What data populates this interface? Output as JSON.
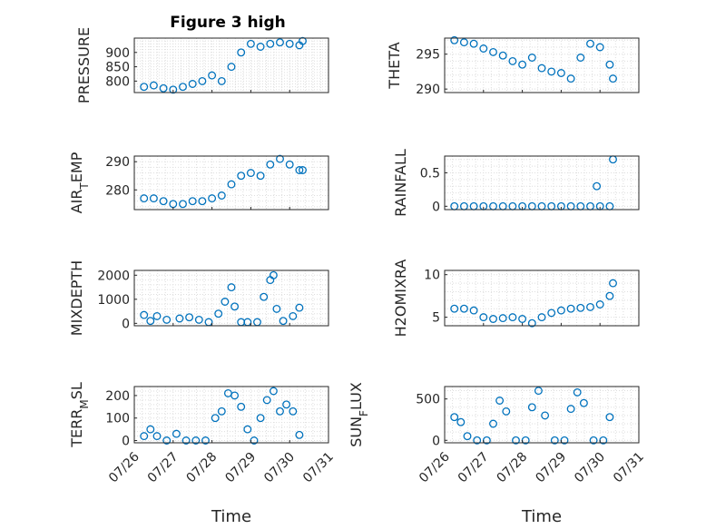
{
  "figure_title": "Figure 3 high",
  "chart_data": [
    {
      "type": "scatter",
      "ylabel": "PRESSURE",
      "xlabel": "",
      "title": "Figure 3 high",
      "xlim": [
        "07/26",
        "07/31"
      ],
      "ylim": [
        760,
        950
      ],
      "xticks": [
        "07/26",
        "07/27",
        "07/28",
        "07/29",
        "07/30",
        "07/31"
      ],
      "yticks": [
        800,
        850,
        900
      ],
      "ytick_labels": [
        "800",
        "850",
        "900"
      ],
      "x": [
        "07/26 06:00",
        "07/26 12:00",
        "07/26 18:00",
        "07/27 00:00",
        "07/27 06:00",
        "07/27 12:00",
        "07/27 18:00",
        "07/28 00:00",
        "07/28 06:00",
        "07/28 12:00",
        "07/28 18:00",
        "07/29 00:00",
        "07/29 06:00",
        "07/29 12:00",
        "07/29 18:00",
        "07/30 00:00",
        "07/30 06:00",
        "07/30 08:00"
      ],
      "y": [
        780,
        785,
        775,
        770,
        780,
        790,
        800,
        820,
        800,
        850,
        900,
        930,
        920,
        930,
        935,
        930,
        925,
        940
      ]
    },
    {
      "type": "scatter",
      "ylabel": "AIR_T_EMP",
      "xlabel": "",
      "xlim": [
        "07/26",
        "07/31"
      ],
      "ylim": [
        273,
        292
      ],
      "xticks": [
        "07/26",
        "07/27",
        "07/28",
        "07/29",
        "07/30",
        "07/31"
      ],
      "yticks": [
        280,
        290
      ],
      "ytick_labels": [
        "280",
        "290"
      ],
      "x": [
        "07/26 06:00",
        "07/26 12:00",
        "07/26 18:00",
        "07/27 00:00",
        "07/27 06:00",
        "07/27 12:00",
        "07/27 18:00",
        "07/28 00:00",
        "07/28 06:00",
        "07/28 12:00",
        "07/28 18:00",
        "07/29 00:00",
        "07/29 06:00",
        "07/29 12:00",
        "07/29 18:00",
        "07/30 00:00",
        "07/30 06:00",
        "07/30 08:00"
      ],
      "y": [
        277,
        277,
        276,
        275,
        275,
        276,
        276,
        277,
        278,
        282,
        285,
        286,
        285,
        289,
        291,
        289,
        287,
        287
      ]
    },
    {
      "type": "scatter",
      "ylabel": "MIXDEPTH",
      "xlabel": "",
      "xlim": [
        "07/26",
        "07/31"
      ],
      "ylim": [
        -100,
        2200
      ],
      "xticks": [
        "07/26",
        "07/27",
        "07/28",
        "07/29",
        "07/30",
        "07/31"
      ],
      "yticks": [
        0,
        1000,
        2000
      ],
      "ytick_labels": [
        "0",
        "1000",
        "2000"
      ],
      "x": [
        "07/26 06:00",
        "07/26 10:00",
        "07/26 14:00",
        "07/26 20:00",
        "07/27 04:00",
        "07/27 10:00",
        "07/27 16:00",
        "07/27 22:00",
        "07/28 04:00",
        "07/28 08:00",
        "07/28 12:00",
        "07/28 14:00",
        "07/28 18:00",
        "07/28 22:00",
        "07/29 04:00",
        "07/29 08:00",
        "07/29 12:00",
        "07/29 14:00",
        "07/29 16:00",
        "07/29 20:00",
        "07/30 02:00",
        "07/30 06:00"
      ],
      "y": [
        350,
        100,
        300,
        150,
        200,
        250,
        150,
        50,
        400,
        900,
        1500,
        700,
        50,
        50,
        50,
        1100,
        1800,
        2000,
        600,
        100,
        300,
        650
      ]
    },
    {
      "type": "scatter",
      "ylabel": "TERR_M_SL",
      "xlabel": "Time",
      "xlim": [
        "07/26",
        "07/31"
      ],
      "ylim": [
        -10,
        240
      ],
      "xticks": [
        "07/26",
        "07/27",
        "07/28",
        "07/29",
        "07/30",
        "07/31"
      ],
      "yticks": [
        0,
        100,
        200
      ],
      "ytick_labels": [
        "0",
        "100",
        "200"
      ],
      "x": [
        "07/26 06:00",
        "07/26 10:00",
        "07/26 14:00",
        "07/26 20:00",
        "07/27 02:00",
        "07/27 08:00",
        "07/27 14:00",
        "07/27 20:00",
        "07/28 02:00",
        "07/28 06:00",
        "07/28 10:00",
        "07/28 14:00",
        "07/28 18:00",
        "07/28 22:00",
        "07/29 02:00",
        "07/29 06:00",
        "07/29 10:00",
        "07/29 14:00",
        "07/29 18:00",
        "07/29 22:00",
        "07/30 02:00",
        "07/30 06:00"
      ],
      "y": [
        20,
        50,
        20,
        0,
        30,
        0,
        0,
        0,
        100,
        130,
        210,
        200,
        150,
        50,
        0,
        100,
        180,
        220,
        130,
        160,
        130,
        25
      ]
    },
    {
      "type": "scatter",
      "ylabel": "THETA",
      "xlabel": "",
      "xlim": [
        "07/26",
        "07/31"
      ],
      "ylim": [
        289.5,
        297.3
      ],
      "xticks": [
        "07/26",
        "07/27",
        "07/28",
        "07/29",
        "07/30",
        "07/31"
      ],
      "yticks": [
        290,
        295
      ],
      "ytick_labels": [
        "290",
        "295"
      ],
      "x": [
        "07/26 06:00",
        "07/26 12:00",
        "07/26 18:00",
        "07/27 00:00",
        "07/27 06:00",
        "07/27 12:00",
        "07/27 18:00",
        "07/28 00:00",
        "07/28 06:00",
        "07/28 12:00",
        "07/28 18:00",
        "07/29 00:00",
        "07/29 06:00",
        "07/29 12:00",
        "07/29 18:00",
        "07/30 00:00",
        "07/30 06:00",
        "07/30 08:00"
      ],
      "y": [
        297,
        296.7,
        296.5,
        295.8,
        295.3,
        294.8,
        294.0,
        293.5,
        294.5,
        293.0,
        292.5,
        292.3,
        291.5,
        294.5,
        296.5,
        296.0,
        293.5,
        291.5
      ]
    },
    {
      "type": "scatter",
      "ylabel": "RAINFALL",
      "xlabel": "",
      "xlim": [
        "07/26",
        "07/31"
      ],
      "ylim": [
        -0.05,
        0.75
      ],
      "xticks": [
        "07/26",
        "07/27",
        "07/28",
        "07/29",
        "07/30",
        "07/31"
      ],
      "yticks": [
        0,
        0.5
      ],
      "ytick_labels": [
        "0",
        "0.5"
      ],
      "x": [
        "07/26 06:00",
        "07/26 12:00",
        "07/26 18:00",
        "07/27 00:00",
        "07/27 06:00",
        "07/27 12:00",
        "07/27 18:00",
        "07/28 00:00",
        "07/28 06:00",
        "07/28 12:00",
        "07/28 18:00",
        "07/29 00:00",
        "07/29 06:00",
        "07/29 12:00",
        "07/29 18:00",
        "07/29 22:00",
        "07/30 00:00",
        "07/30 06:00",
        "07/30 08:00"
      ],
      "y": [
        0,
        0,
        0,
        0,
        0,
        0,
        0,
        0,
        0,
        0,
        0,
        0,
        0,
        0,
        0,
        0.3,
        0,
        0,
        0.7
      ]
    },
    {
      "type": "scatter",
      "ylabel": "H2OMIXRA",
      "xlabel": "",
      "xlim": [
        "07/26",
        "07/31"
      ],
      "ylim": [
        4,
        10.5
      ],
      "xticks": [
        "07/26",
        "07/27",
        "07/28",
        "07/29",
        "07/30",
        "07/31"
      ],
      "yticks": [
        5,
        10
      ],
      "ytick_labels": [
        "5",
        "10"
      ],
      "x": [
        "07/26 06:00",
        "07/26 12:00",
        "07/26 18:00",
        "07/27 00:00",
        "07/27 06:00",
        "07/27 12:00",
        "07/27 18:00",
        "07/28 00:00",
        "07/28 06:00",
        "07/28 12:00",
        "07/28 18:00",
        "07/29 00:00",
        "07/29 06:00",
        "07/29 12:00",
        "07/29 18:00",
        "07/30 00:00",
        "07/30 06:00",
        "07/30 08:00"
      ],
      "y": [
        6.0,
        6.0,
        5.8,
        5.0,
        4.8,
        4.9,
        5.0,
        4.8,
        4.3,
        5.0,
        5.5,
        5.8,
        6.0,
        6.1,
        6.2,
        6.5,
        7.5,
        9.0
      ]
    },
    {
      "type": "scatter",
      "ylabel": "SUN_F_LUX",
      "xlabel": "Time",
      "xlim": [
        "07/26",
        "07/31"
      ],
      "ylim": [
        -30,
        650
      ],
      "xticks": [
        "07/26",
        "07/27",
        "07/28",
        "07/29",
        "07/30",
        "07/31"
      ],
      "yticks": [
        0,
        500
      ],
      "ytick_labels": [
        "0",
        "500"
      ],
      "x": [
        "07/26 06:00",
        "07/26 10:00",
        "07/26 14:00",
        "07/26 20:00",
        "07/27 02:00",
        "07/27 06:00",
        "07/27 10:00",
        "07/27 14:00",
        "07/27 20:00",
        "07/28 02:00",
        "07/28 06:00",
        "07/28 10:00",
        "07/28 14:00",
        "07/28 20:00",
        "07/29 02:00",
        "07/29 06:00",
        "07/29 10:00",
        "07/29 14:00",
        "07/29 20:00",
        "07/30 02:00",
        "07/30 06:00"
      ],
      "y": [
        280,
        220,
        50,
        0,
        0,
        200,
        480,
        350,
        0,
        0,
        400,
        600,
        300,
        0,
        0,
        380,
        580,
        450,
        0,
        0,
        280
      ]
    }
  ],
  "styles": {
    "marker_color": "#0072bd",
    "axis_color": "#262626",
    "grid_color": "#dedede"
  }
}
